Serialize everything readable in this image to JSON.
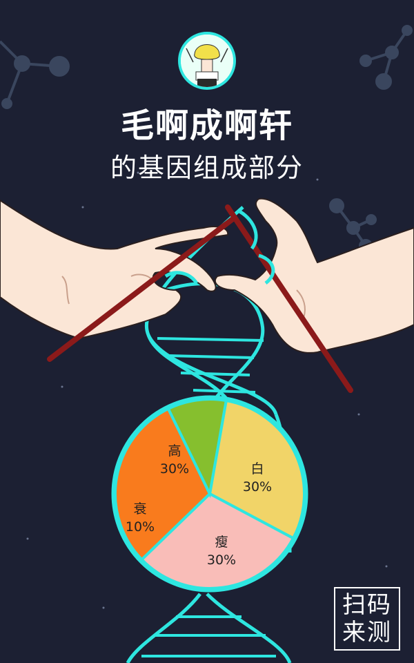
{
  "header": {
    "title": "毛啊成啊轩",
    "subtitle": "的基因组成部分"
  },
  "colors": {
    "background": "#1c2033",
    "dna": "#2ee6e0",
    "needle": "#8b1a1a",
    "skin": "#fbe6d6"
  },
  "chart_data": {
    "type": "pie",
    "slices": [
      {
        "label": "高",
        "value": 30,
        "display": "30%",
        "color": "#f1d468"
      },
      {
        "label": "白",
        "value": 30,
        "display": "30%",
        "color": "#f9bdb8"
      },
      {
        "label": "瘦",
        "value": 30,
        "display": "30%",
        "color": "#f97b1d"
      },
      {
        "label": "衰",
        "value": 10,
        "display": "10%",
        "color": "#86bf2e"
      }
    ]
  },
  "scan_button": {
    "line1": "扫码",
    "line2": "来测"
  }
}
